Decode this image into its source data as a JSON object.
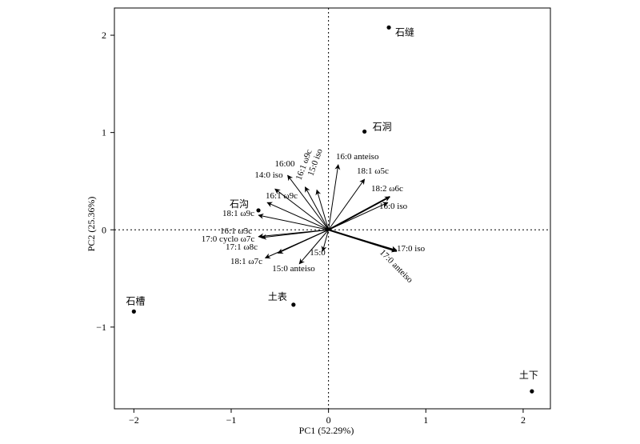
{
  "chart_data": {
    "type": "biplot",
    "xlabel": "PC1 (52.29%)",
    "ylabel": "PC2 (25.36%)",
    "xlim": [
      -2.2,
      2.28
    ],
    "ylim": [
      -1.84,
      2.28
    ],
    "x_ticks": [
      -2,
      -1,
      0,
      1,
      2
    ],
    "y_ticks": [
      -1,
      0,
      1,
      2
    ],
    "x_tick_labels": [
      "−2",
      "−1",
      "0",
      "1",
      "2"
    ],
    "y_tick_labels": [
      "−1",
      "0",
      "1",
      "2"
    ],
    "zero_lines": "dotted",
    "grid": false,
    "points": [
      {
        "label": "石缝",
        "x": 0.62,
        "y": 2.08
      },
      {
        "label": "石洞",
        "x": 0.37,
        "y": 1.01
      },
      {
        "label": "石沟",
        "x": -0.72,
        "y": 0.2
      },
      {
        "label": "石槽",
        "x": -2.0,
        "y": -0.84
      },
      {
        "label": "土表",
        "x": -0.36,
        "y": -0.77
      },
      {
        "label": "土下",
        "x": 2.09,
        "y": -1.66
      }
    ],
    "vectors": [
      {
        "label": "16:00",
        "x": -0.42,
        "y": 0.56
      },
      {
        "label": "14:0 iso",
        "x": -0.55,
        "y": 0.42
      },
      {
        "label": "16:1 ω9c",
        "x": -0.24,
        "y": 0.44
      },
      {
        "label": "15:0 iso",
        "x": -0.12,
        "y": 0.41
      },
      {
        "label": "16:0 anteiso",
        "x": 0.1,
        "y": 0.67
      },
      {
        "label": "18:1 ω5c",
        "x": 0.37,
        "y": 0.52
      },
      {
        "label": "18:2 ω6c",
        "x": 0.63,
        "y": 0.34
      },
      {
        "label": "16:0 iso",
        "x": 0.61,
        "y": 0.28
      },
      {
        "label": "16:1 ω9c",
        "x": -0.63,
        "y": 0.28
      },
      {
        "label": "18:1 ω9c",
        "x": -0.72,
        "y": 0.15
      },
      {
        "label": "16:1 ω5c",
        "x": -0.72,
        "y": -0.07
      },
      {
        "label": "17:0 cyclo ω7c",
        "x": -0.69,
        "y": -0.08
      },
      {
        "label": "17:1 ω8c",
        "x": -0.52,
        "y": -0.24
      },
      {
        "label": "18:1 ω7c",
        "x": -0.65,
        "y": -0.29
      },
      {
        "label": "15:0 anteiso",
        "x": -0.3,
        "y": -0.35
      },
      {
        "label": "15:0",
        "x": -0.06,
        "y": -0.22
      },
      {
        "label": "17:0 iso",
        "x": 0.7,
        "y": -0.22
      },
      {
        "label": "17:0 anteiso",
        "x": 0.7,
        "y": -0.21
      }
    ]
  }
}
